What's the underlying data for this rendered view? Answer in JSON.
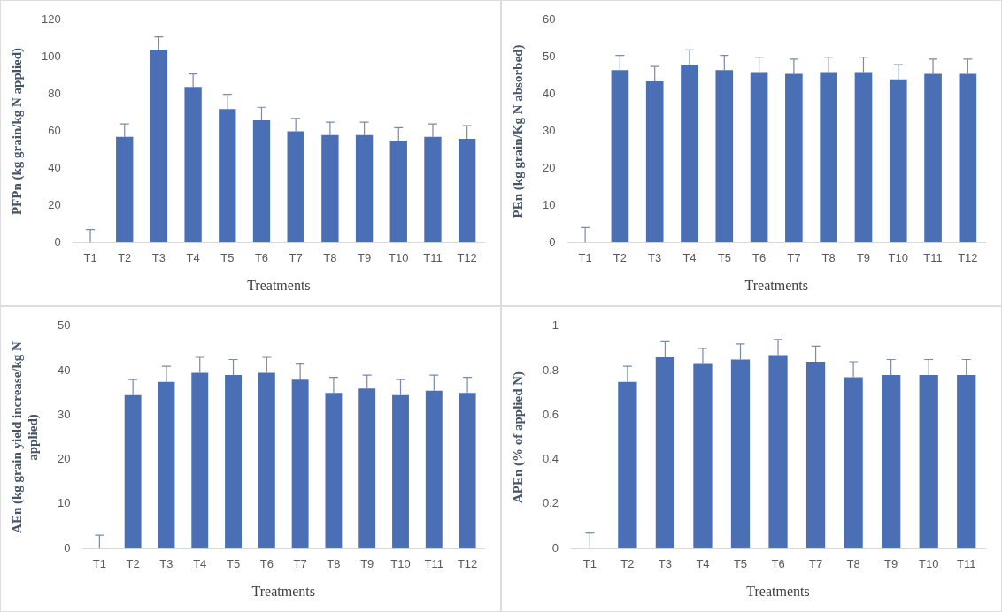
{
  "chart_data": [
    {
      "type": "bar",
      "xlabel": "Treatments",
      "ylabel": "PFPn (kg grain/kg N applied)",
      "categories": [
        "T1",
        "T2",
        "T3",
        "T4",
        "T5",
        "T6",
        "T7",
        "T8",
        "T9",
        "T10",
        "T11",
        "T12"
      ],
      "color": "#4a6fb5",
      "legend": false,
      "values": [
        0,
        57,
        104,
        84,
        72,
        66,
        60,
        58,
        58,
        55,
        57,
        56
      ],
      "errors": [
        [
          0,
          7
        ],
        [
          57,
          64
        ],
        [
          104,
          111
        ],
        [
          84,
          91
        ],
        [
          72,
          80
        ],
        [
          66,
          73
        ],
        [
          60,
          67
        ],
        [
          58,
          65
        ],
        [
          58,
          65
        ],
        [
          55,
          62
        ],
        [
          57,
          64
        ],
        [
          56,
          63
        ]
      ],
      "ylim": [
        0,
        120
      ],
      "yticks": [
        0,
        20,
        40,
        60,
        80,
        100,
        120
      ]
    },
    {
      "type": "bar",
      "xlabel": "Treatments",
      "ylabel": "PEn (kg grain/Kg N absorbed)",
      "categories": [
        "T1",
        "T2",
        "T3",
        "T4",
        "T5",
        "T6",
        "T7",
        "T8",
        "T9",
        "T10",
        "T11",
        "T12"
      ],
      "color": "#4a6fb5",
      "legend": false,
      "values": [
        0,
        46.5,
        43.5,
        48,
        46.5,
        46,
        45.5,
        46,
        46,
        44,
        45.5,
        45.5
      ],
      "errors": [
        [
          0,
          4
        ],
        [
          46.5,
          50.5
        ],
        [
          43.5,
          47.5
        ],
        [
          48,
          52
        ],
        [
          46.5,
          50.5
        ],
        [
          46,
          50
        ],
        [
          45.5,
          49.5
        ],
        [
          46,
          50
        ],
        [
          46,
          50
        ],
        [
          44,
          48
        ],
        [
          45.5,
          49.5
        ],
        [
          45.5,
          49.5
        ]
      ],
      "ylim": [
        0,
        60
      ],
      "yticks": [
        0,
        10,
        20,
        30,
        40,
        50,
        60
      ]
    },
    {
      "type": "bar",
      "xlabel": "Treatments",
      "ylabel": "AEn (kg grain yield increase/kg N applied)",
      "categories": [
        "T1",
        "T2",
        "T3",
        "T4",
        "T5",
        "T6",
        "T7",
        "T8",
        "T9",
        "T10",
        "T11",
        "T12"
      ],
      "color": "#4a6fb5",
      "legend": false,
      "values": [
        0,
        34.5,
        37.5,
        39.5,
        39,
        39.5,
        38,
        35,
        36,
        34.5,
        35.5,
        35
      ],
      "errors": [
        [
          0,
          3
        ],
        [
          34.5,
          38
        ],
        [
          37.5,
          41
        ],
        [
          39.5,
          43
        ],
        [
          39,
          42.5
        ],
        [
          39.5,
          43
        ],
        [
          38,
          41.5
        ],
        [
          35,
          38.5
        ],
        [
          36,
          39
        ],
        [
          34.5,
          38
        ],
        [
          35.5,
          39
        ],
        [
          35,
          38.5
        ]
      ],
      "ylim": [
        0,
        50
      ],
      "yticks": [
        0,
        10,
        20,
        30,
        40,
        50
      ]
    },
    {
      "type": "bar",
      "xlabel": "Treatments",
      "ylabel": "APEn (% of applied N)",
      "categories": [
        "T1",
        "T2",
        "T3",
        "T4",
        "T5",
        "T6",
        "T7",
        "T8",
        "T9",
        "T10",
        "T11"
      ],
      "color": "#4a6fb5",
      "legend": false,
      "values": [
        0,
        0.75,
        0.86,
        0.83,
        0.85,
        0.87,
        0.84,
        0.77,
        0.78,
        0.78,
        0.78
      ],
      "errors": [
        [
          0,
          0.07
        ],
        [
          0.75,
          0.82
        ],
        [
          0.86,
          0.93
        ],
        [
          0.83,
          0.9
        ],
        [
          0.85,
          0.92
        ],
        [
          0.87,
          0.94
        ],
        [
          0.84,
          0.91
        ],
        [
          0.77,
          0.84
        ],
        [
          0.78,
          0.85
        ],
        [
          0.78,
          0.85
        ],
        [
          0.78,
          0.85
        ]
      ],
      "ylim": [
        0,
        1
      ],
      "yticks": [
        0,
        0.2,
        0.4,
        0.6,
        0.8,
        1
      ]
    }
  ]
}
